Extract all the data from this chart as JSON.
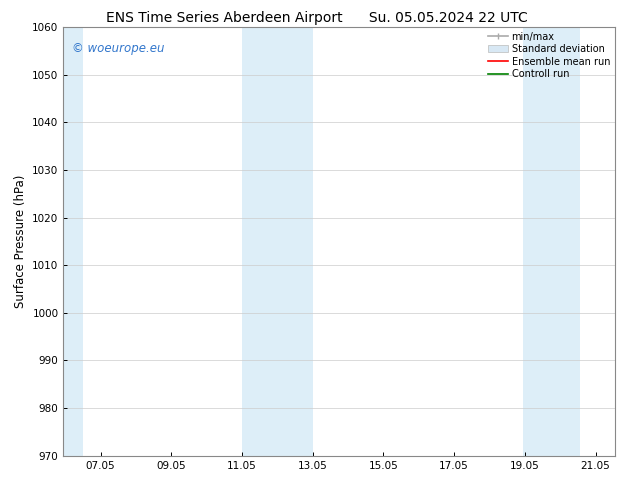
{
  "title_left": "ENS Time Series Aberdeen Airport",
  "title_right": "Su. 05.05.2024 22 UTC",
  "ylabel": "Surface Pressure (hPa)",
  "ylim": [
    970,
    1060
  ],
  "yticks": [
    970,
    980,
    990,
    1000,
    1010,
    1020,
    1030,
    1040,
    1050,
    1060
  ],
  "xlim_start": 5.95,
  "xlim_end": 21.55,
  "xtick_labels": [
    "07.05",
    "09.05",
    "11.05",
    "13.05",
    "15.05",
    "17.05",
    "19.05",
    "21.05"
  ],
  "xtick_positions": [
    7.0,
    9.0,
    11.0,
    13.0,
    15.0,
    17.0,
    19.0,
    21.0
  ],
  "shaded_bands": [
    {
      "x_start": 5.95,
      "x_end": 6.5
    },
    {
      "x_start": 11.0,
      "x_end": 13.0
    },
    {
      "x_start": 18.95,
      "x_end": 20.55
    }
  ],
  "shaded_color": "#ddeef8",
  "background_color": "#ffffff",
  "grid_color": "#cccccc",
  "watermark_text": "© woeurope.eu",
  "watermark_color": "#3377cc",
  "legend_entries": [
    {
      "label": "min/max",
      "color": "#aaaaaa",
      "lw": 1.2,
      "style": "minmax"
    },
    {
      "label": "Standard deviation",
      "color": "#d8e8f4",
      "lw": 8,
      "style": "band"
    },
    {
      "label": "Ensemble mean run",
      "color": "#ff0000",
      "lw": 1.2,
      "style": "line"
    },
    {
      "label": "Controll run",
      "color": "#008000",
      "lw": 1.2,
      "style": "line"
    }
  ],
  "title_fontsize": 10,
  "axis_label_fontsize": 8.5,
  "tick_fontsize": 7.5,
  "legend_fontsize": 7.0
}
